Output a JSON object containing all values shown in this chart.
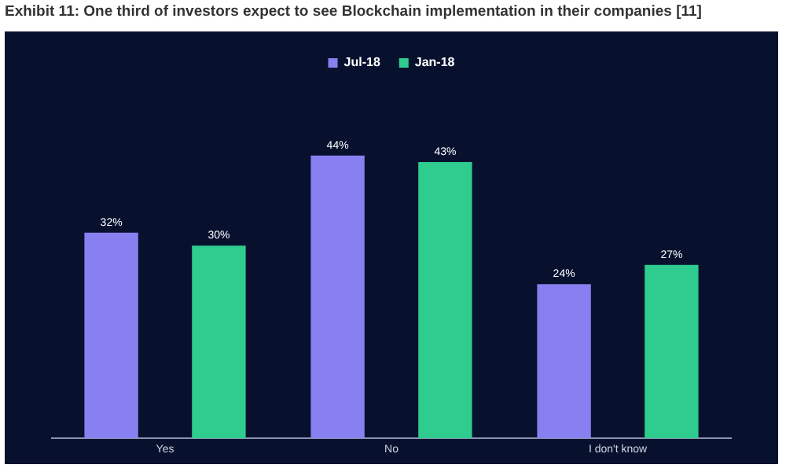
{
  "chart_data": {
    "type": "bar",
    "title": "Exhibit 11: One third of investors expect to see Blockchain implementation in their companies [11]",
    "categories": [
      "Yes",
      "No",
      "I don't know"
    ],
    "series": [
      {
        "name": "Jul-18",
        "color": "#8880f0",
        "values": [
          32,
          44,
          24
        ],
        "value_labels": [
          "32%",
          "44%",
          "24%"
        ]
      },
      {
        "name": "Jan-18",
        "color": "#2ecc8f",
        "values": [
          30,
          43,
          27
        ],
        "value_labels": [
          "30%",
          "43%",
          "27%"
        ]
      }
    ],
    "legend": "top",
    "grid": false,
    "tick_labels": "x"
  }
}
